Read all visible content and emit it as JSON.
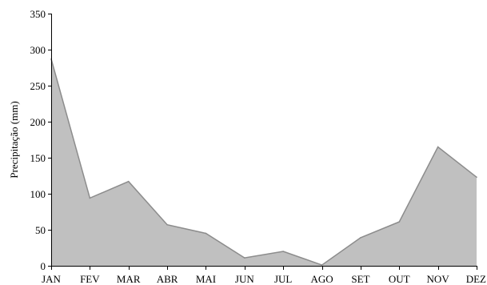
{
  "chart_data": {
    "type": "area",
    "title": "",
    "xlabel": "",
    "ylabel": "Precipitação (mm)",
    "categories": [
      "JAN",
      "FEV",
      "MAR",
      "ABR",
      "MAI",
      "JUN",
      "JUL",
      "AGO",
      "SET",
      "OUT",
      "NOV",
      "DEZ"
    ],
    "series": [
      {
        "values": [
          287,
          94,
          117,
          57,
          45,
          11,
          20,
          1,
          39,
          61,
          165,
          123
        ]
      }
    ],
    "ylim": [
      0,
      350
    ],
    "yticks": [
      0,
      50,
      100,
      150,
      200,
      250,
      300,
      350
    ],
    "grid": false,
    "legend": "none",
    "colors": {
      "fill": "#c0c0c0",
      "stroke": "#8c8c8c",
      "axis": "#000000"
    }
  }
}
